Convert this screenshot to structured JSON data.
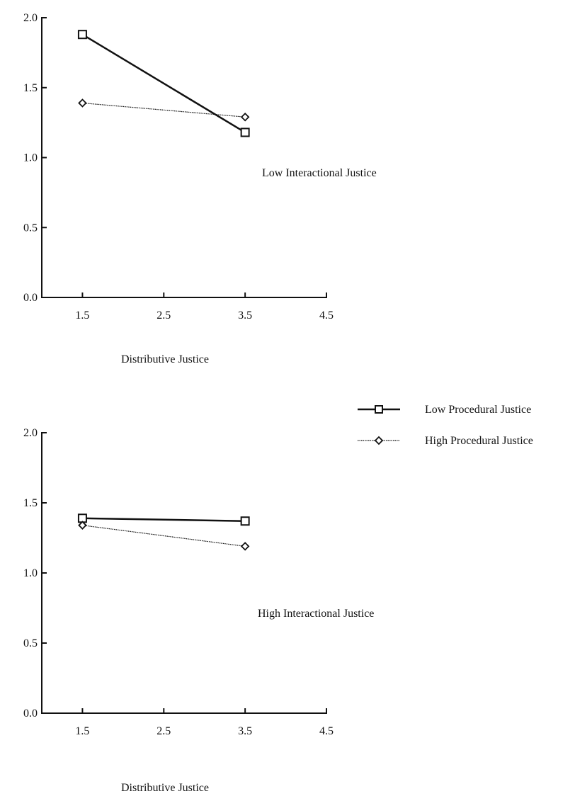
{
  "legend": {
    "placement": "right, between panels",
    "entries": [
      {
        "name": "Low Procedural Justice",
        "marker": "square",
        "line": "thick"
      },
      {
        "name": "High Procedural Justice",
        "marker": "diamond",
        "line": "thin"
      }
    ]
  },
  "colors": {
    "ink": "#111111",
    "background": "#ffffff"
  },
  "chart_data": [
    {
      "type": "line",
      "panel_label": "Low Interactional Justice",
      "xlabel": "Distributive Justice",
      "ylabel": "",
      "xlim": [
        1.0,
        4.5
      ],
      "ylim": [
        0.0,
        2.0
      ],
      "x_ticks": [
        "1.5",
        "2.5",
        "3.5",
        "4.5"
      ],
      "y_ticks": [
        "0.0",
        "0.5",
        "1.0",
        "1.5",
        "2.0"
      ],
      "grid": false,
      "x": [
        1.5,
        3.5
      ],
      "series": [
        {
          "name": "Low Procedural Justice",
          "values": [
            1.88,
            1.18
          ]
        },
        {
          "name": "High Procedural Justice",
          "values": [
            1.39,
            1.29
          ]
        }
      ]
    },
    {
      "type": "line",
      "panel_label": "High Interactional Justice",
      "xlabel": "Distributive Justice",
      "ylabel": "",
      "xlim": [
        1.0,
        4.5
      ],
      "ylim": [
        0.0,
        2.0
      ],
      "x_ticks": [
        "1.5",
        "2.5",
        "3.5",
        "4.5"
      ],
      "y_ticks": [
        "0.0",
        "0.5",
        "1.0",
        "1.5",
        "2.0"
      ],
      "grid": false,
      "x": [
        1.5,
        3.5
      ],
      "series": [
        {
          "name": "Low Procedural Justice",
          "values": [
            1.39,
            1.37
          ]
        },
        {
          "name": "High Procedural Justice",
          "values": [
            1.34,
            1.19
          ]
        }
      ]
    }
  ]
}
